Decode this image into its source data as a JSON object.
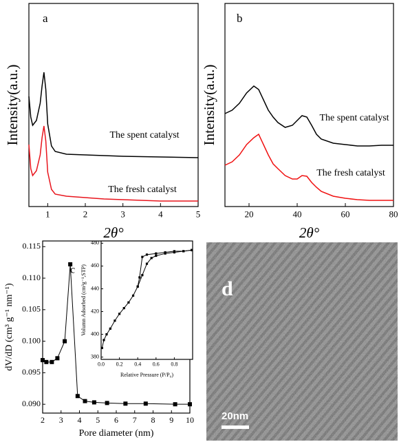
{
  "chart_data": [
    {
      "type": "line",
      "panel_label": "a",
      "y_label": "Intensity(a.u.)",
      "x_label": "2θ°",
      "xlim": [
        0.5,
        5
      ],
      "xticks": [
        1,
        2,
        3,
        4,
        5
      ],
      "ylim": [
        0,
        295
      ],
      "x": [
        0.5,
        0.55,
        0.6,
        0.7,
        0.8,
        0.85,
        0.9,
        0.95,
        1.0,
        1.1,
        1.2,
        1.5,
        2,
        2.5,
        3,
        4,
        5
      ],
      "series": [
        {
          "name": "The spent catalyst",
          "color": "#000000",
          "values": [
            160,
            130,
            118,
            125,
            150,
            175,
            195,
            170,
            120,
            88,
            80,
            76,
            75,
            74,
            73,
            72,
            71
          ]
        },
        {
          "name": "The fresh catalyst",
          "color": "#e8141c",
          "values": [
            90,
            55,
            45,
            52,
            75,
            100,
            117,
            95,
            50,
            25,
            18,
            15,
            13,
            11,
            10,
            8,
            8
          ]
        }
      ]
    },
    {
      "type": "line",
      "panel_label": "b",
      "y_label": "Intensity(a.u.)",
      "x_label": "2θ°",
      "xlim": [
        10,
        80
      ],
      "xticks": [
        20,
        40,
        60,
        80
      ],
      "ylim": [
        0,
        295
      ],
      "x": [
        10,
        13,
        16,
        19,
        22,
        24,
        26,
        28,
        30,
        32,
        35,
        38,
        40,
        42,
        44,
        46,
        48,
        50,
        55,
        60,
        65,
        70,
        75,
        80
      ],
      "series": [
        {
          "name": "The spent catalyst",
          "color": "#000000",
          "values": [
            135,
            140,
            150,
            165,
            175,
            170,
            155,
            140,
            130,
            122,
            115,
            118,
            125,
            132,
            130,
            118,
            105,
            98,
            92,
            90,
            88,
            88,
            89,
            89
          ]
        },
        {
          "name": "The fresh catalyst",
          "color": "#f01010",
          "values": [
            60,
            65,
            75,
            90,
            100,
            105,
            90,
            75,
            62,
            55,
            45,
            40,
            40,
            45,
            44,
            35,
            28,
            22,
            15,
            12,
            10,
            9,
            9,
            9
          ]
        }
      ]
    },
    {
      "type": "line",
      "marker": "square",
      "panel_label": "c",
      "y_label": "dV/dD (cm³ g⁻¹ nm⁻¹)",
      "x_label": "Pore diameter (nm)",
      "xlim": [
        2,
        10
      ],
      "xticks": [
        2,
        3,
        4,
        5,
        6,
        7,
        8,
        9,
        10
      ],
      "ylim": [
        0.0886,
        0.1159
      ],
      "yticks": [
        {
          "value": 0.09,
          "label": "0.090"
        },
        0.095,
        {
          "value": 0.1,
          "label": "0.100"
        },
        0.105,
        {
          "value": 0.11,
          "label": "0.110"
        },
        0.115
      ],
      "x": [
        2.0,
        2.2,
        2.5,
        2.8,
        3.2,
        3.5,
        3.9,
        4.3,
        4.8,
        5.5,
        6.5,
        7.6,
        9.2,
        10
      ],
      "series": [
        {
          "color": "#000000",
          "values": [
            0.097,
            0.0967,
            0.0967,
            0.0973,
            0.1,
            0.1122,
            0.0913,
            0.0905,
            0.0903,
            0.0902,
            0.0901,
            0.0901,
            0.09,
            0.09
          ]
        }
      ]
    },
    {
      "type": "line",
      "marker": "square",
      "y_label": "Volumn Adsorbed (cm³g⁻¹,STP)",
      "x_label": "Relative Pressure (P/P₀)",
      "xlim": [
        0,
        1
      ],
      "xticks": [
        {
          "value": 0,
          "label": "0.0"
        },
        0.2,
        0.4,
        0.6,
        0.8
      ],
      "ylim": [
        378,
        482
      ],
      "yticks": [
        380,
        400,
        420,
        440,
        460,
        480
      ],
      "series": [
        {
          "color": "#000000",
          "x": [
            0.01,
            0.03,
            0.06,
            0.1,
            0.15,
            0.2,
            0.25,
            0.3,
            0.35,
            0.4,
            0.45,
            0.5,
            0.55,
            0.6,
            0.7,
            0.8,
            0.9,
            0.99
          ],
          "values": [
            388,
            395,
            400,
            405,
            412,
            418,
            423,
            428,
            434,
            442,
            452,
            462,
            467,
            469,
            471,
            472,
            473,
            474
          ]
        },
        {
          "color": "#000000",
          "x": [
            0.99,
            0.9,
            0.8,
            0.7,
            0.6,
            0.5,
            0.45,
            0.42,
            0.4
          ],
          "values": [
            474,
            473,
            473,
            472,
            471,
            470,
            468,
            450,
            442
          ]
        }
      ]
    },
    {
      "type": "image",
      "panel_label": "d",
      "scale_bar": "20nm"
    }
  ]
}
